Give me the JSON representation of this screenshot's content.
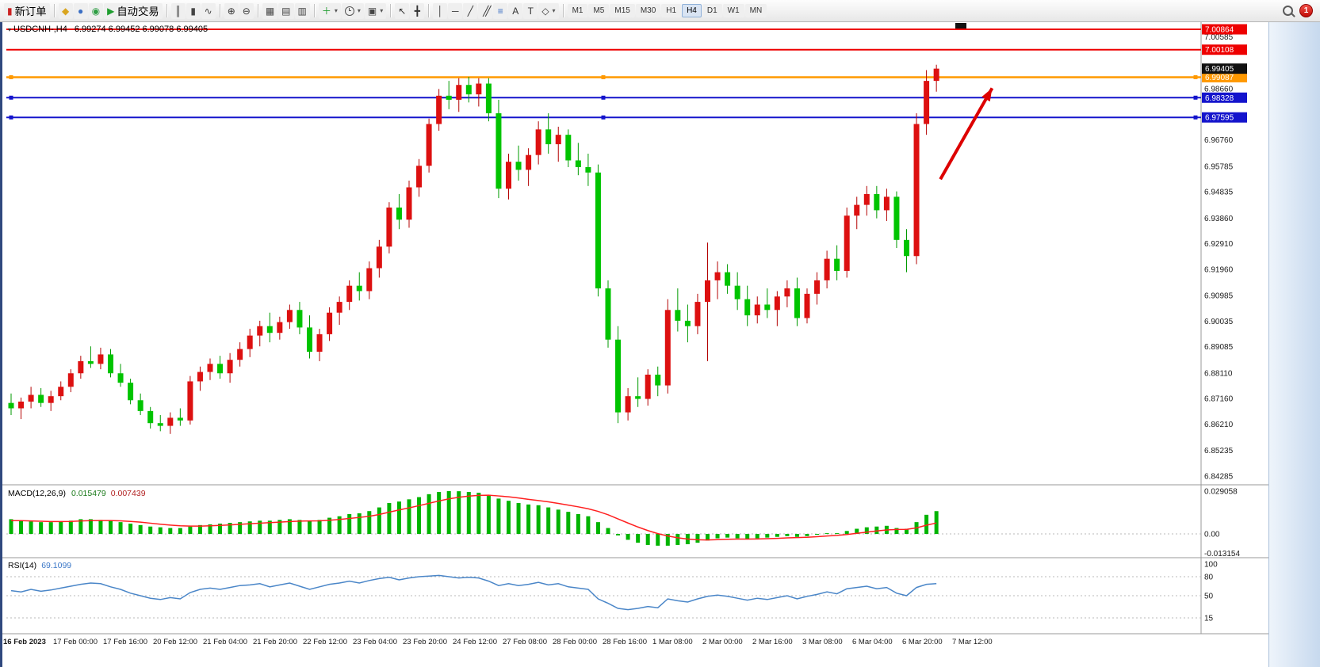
{
  "window": {
    "badge_count": "1"
  },
  "toolbar": {
    "groups": [
      {
        "items": [
          {
            "name": "new-order",
            "label": "新订单",
            "icon": "new-order-icon"
          }
        ]
      },
      {
        "items": [
          {
            "name": "metaeditor",
            "icon": "editor-icon"
          },
          {
            "name": "market-watch",
            "icon": "person-icon"
          },
          {
            "name": "sound-alerts",
            "icon": "sound-icon"
          },
          {
            "name": "autotrading",
            "label": "自动交易",
            "icon": "play-icon"
          }
        ]
      },
      {
        "items": [
          {
            "name": "bar-chart-mode",
            "icon": "bars-icon"
          },
          {
            "name": "candle-chart-mode",
            "icon": "candles-icon"
          },
          {
            "name": "line-chart-mode",
            "icon": "linechart-icon"
          }
        ]
      },
      {
        "items": [
          {
            "name": "zoom-in",
            "icon": "zoom-in-icon"
          },
          {
            "name": "zoom-out",
            "icon": "zoom-out-icon"
          }
        ]
      },
      {
        "items": [
          {
            "name": "tile-windows",
            "icon": "tile-icon"
          },
          {
            "name": "cascade-windows",
            "icon": "cascade-icon"
          },
          {
            "name": "arrange-windows",
            "icon": "arrange-icon"
          }
        ]
      },
      {
        "items": [
          {
            "name": "new-chart",
            "icon": "plus-chart-icon",
            "dropdown": true
          },
          {
            "name": "periods",
            "icon": "clock-icon",
            "dropdown": true
          },
          {
            "name": "templates",
            "icon": "template-icon",
            "dropdown": true
          }
        ]
      },
      {
        "items": [
          {
            "name": "cursor-tool",
            "icon": "cursor-icon"
          },
          {
            "name": "crosshair-tool",
            "icon": "crosshair-icon"
          }
        ]
      },
      {
        "items": [
          {
            "name": "vertical-line-tool",
            "icon": "vline-icon"
          },
          {
            "name": "horizontal-line-tool",
            "icon": "hline-icon"
          },
          {
            "name": "trendline-tool",
            "icon": "trendline-icon"
          },
          {
            "name": "channel-tool",
            "icon": "channel-icon"
          },
          {
            "name": "fibonacci-tool",
            "icon": "fibo-icon"
          },
          {
            "name": "text-tool",
            "icon": "text-icon"
          },
          {
            "name": "label-tool",
            "icon": "label-icon"
          },
          {
            "name": "shapes-tool",
            "icon": "shapes-icon",
            "dropdown": true
          }
        ]
      }
    ],
    "timeframes": [
      "M1",
      "M5",
      "M15",
      "M30",
      "H1",
      "H4",
      "D1",
      "W1",
      "MN"
    ],
    "active_timeframe": "H4"
  },
  "chart": {
    "title_symbol": "USDCNH-,H4",
    "title_ohlc": "6.99274 6.99452 6.99078 6.99405",
    "current_price": {
      "label": "6.99405",
      "price": 6.99405,
      "bg": "#111111"
    },
    "levels": [
      {
        "label": "7.00864",
        "price": 7.00864,
        "color": "#ee0000",
        "width": 2,
        "handles": false
      },
      {
        "label": "7.00108",
        "price": 7.00108,
        "color": "#ee0000",
        "width": 2,
        "handles": false
      },
      {
        "label": "6.99087",
        "price": 6.99087,
        "color": "#ff9900",
        "width": 2.5,
        "handles": true
      },
      {
        "label": "6.98328",
        "price": 6.98328,
        "color": "#1414cc",
        "width": 2,
        "handles": true
      },
      {
        "label": "6.97595",
        "price": 6.97595,
        "color": "#1414cc",
        "width": 2,
        "handles": true
      }
    ],
    "price_ticks": [
      "7.00585",
      "6.99435",
      "6.98660",
      "6.96760",
      "6.95785",
      "6.94835",
      "6.93860",
      "6.92910",
      "6.91960",
      "6.90985",
      "6.90035",
      "6.89085",
      "6.88110",
      "6.87160",
      "6.86210",
      "6.85235",
      "6.84285"
    ]
  },
  "chart_data": {
    "type": "candlestick",
    "symbol": "USDCNH-",
    "timeframe": "H4",
    "colors": {
      "up": "#dd1010",
      "up_wick": "#b40404",
      "down": "#00c400",
      "down_wick": "#009a00",
      "macd_bar": "#00b400",
      "macd_signal": "#ff2020",
      "rsi_line": "#4a86c8"
    },
    "candles": [
      [
        6.87,
        6.8735,
        6.8655,
        6.868
      ],
      [
        6.868,
        6.872,
        6.864,
        6.8705
      ],
      [
        6.8705,
        6.876,
        6.868,
        6.873
      ],
      [
        6.873,
        6.8755,
        6.8685,
        6.87
      ],
      [
        6.87,
        6.8745,
        6.867,
        6.8725
      ],
      [
        6.8725,
        6.878,
        6.871,
        6.876
      ],
      [
        6.876,
        6.8825,
        6.874,
        6.881
      ],
      [
        6.881,
        6.8875,
        6.879,
        6.8855
      ],
      [
        6.8855,
        6.891,
        6.883,
        6.8845
      ],
      [
        6.8845,
        6.8905,
        6.8825,
        6.888
      ],
      [
        6.888,
        6.89,
        6.8795,
        6.881
      ],
      [
        6.881,
        6.8845,
        6.876,
        6.8775
      ],
      [
        6.8775,
        6.879,
        6.8695,
        6.871
      ],
      [
        6.871,
        6.8735,
        6.8655,
        6.867
      ],
      [
        6.867,
        6.8685,
        6.8605,
        6.8625
      ],
      [
        6.8625,
        6.8655,
        6.8595,
        6.8615
      ],
      [
        6.8615,
        6.8665,
        6.8585,
        6.8645
      ],
      [
        6.8645,
        6.868,
        6.8615,
        6.8635
      ],
      [
        6.8635,
        6.88,
        6.862,
        6.878
      ],
      [
        6.878,
        6.8835,
        6.8745,
        6.8815
      ],
      [
        6.8815,
        6.8865,
        6.8785,
        6.8845
      ],
      [
        6.8845,
        6.8875,
        6.879,
        6.881
      ],
      [
        6.881,
        6.8885,
        6.8775,
        6.886
      ],
      [
        6.886,
        6.8925,
        6.8835,
        6.89
      ],
      [
        6.89,
        6.8975,
        6.887,
        6.895
      ],
      [
        6.895,
        6.9005,
        6.891,
        6.8985
      ],
      [
        6.8985,
        6.9035,
        6.8925,
        6.896
      ],
      [
        6.896,
        6.902,
        6.8935,
        6.9
      ],
      [
        6.9,
        6.9065,
        6.8975,
        6.9045
      ],
      [
        6.9045,
        6.9075,
        6.8955,
        6.898
      ],
      [
        6.898,
        6.9025,
        6.8865,
        6.889
      ],
      [
        6.889,
        6.8975,
        6.8855,
        6.8955
      ],
      [
        6.8955,
        6.9055,
        6.893,
        6.9035
      ],
      [
        6.9035,
        6.9095,
        6.899,
        6.9075
      ],
      [
        6.9075,
        6.9155,
        6.9045,
        6.9135
      ],
      [
        6.9135,
        6.9185,
        6.908,
        6.9115
      ],
      [
        6.9115,
        6.9225,
        6.9085,
        6.92
      ],
      [
        6.92,
        6.9305,
        6.9165,
        6.928
      ],
      [
        6.928,
        6.9445,
        6.9255,
        6.9425
      ],
      [
        6.9425,
        6.9475,
        6.9345,
        6.938
      ],
      [
        6.938,
        6.9525,
        6.935,
        6.95
      ],
      [
        6.95,
        6.9605,
        6.9465,
        6.958
      ],
      [
        6.958,
        6.9755,
        6.9555,
        6.9735
      ],
      [
        6.9735,
        6.9865,
        6.971,
        6.984
      ],
      [
        6.984,
        6.9895,
        6.979,
        6.9825
      ],
      [
        6.9825,
        6.9905,
        6.978,
        6.988
      ],
      [
        6.988,
        6.991,
        6.9815,
        6.9845
      ],
      [
        6.9845,
        6.9905,
        6.98,
        6.9885
      ],
      [
        6.9885,
        6.9905,
        6.9745,
        6.9775
      ],
      [
        6.9775,
        6.9825,
        6.946,
        6.9495
      ],
      [
        6.9495,
        6.9625,
        6.9455,
        6.9595
      ],
      [
        6.9595,
        6.9655,
        6.9525,
        6.9565
      ],
      [
        6.9565,
        6.9645,
        6.9505,
        6.962
      ],
      [
        6.962,
        6.9745,
        6.9585,
        6.9715
      ],
      [
        6.9715,
        6.9775,
        6.9625,
        6.966
      ],
      [
        6.966,
        6.9725,
        6.9595,
        6.9695
      ],
      [
        6.9695,
        6.9715,
        6.9575,
        6.96
      ],
      [
        6.96,
        6.9665,
        6.9545,
        6.9575
      ],
      [
        6.9575,
        6.9625,
        6.9505,
        6.9555
      ],
      [
        6.9555,
        6.9585,
        6.9095,
        6.9125
      ],
      [
        6.9125,
        6.9155,
        6.8905,
        6.8935
      ],
      [
        6.8935,
        6.8985,
        6.8625,
        6.8665
      ],
      [
        6.8665,
        6.8755,
        6.8635,
        6.8725
      ],
      [
        6.8725,
        6.8795,
        6.8685,
        6.8715
      ],
      [
        6.8715,
        6.8825,
        6.869,
        6.8805
      ],
      [
        6.8805,
        6.8835,
        6.8725,
        6.8765
      ],
      [
        6.8765,
        6.9085,
        6.8735,
        6.9045
      ],
      [
        6.9045,
        6.9125,
        6.8965,
        6.9005
      ],
      [
        6.9005,
        6.9065,
        6.8925,
        6.8985
      ],
      [
        6.8985,
        6.9105,
        6.8955,
        6.9075
      ],
      [
        6.9075,
        6.9295,
        6.8855,
        6.9155
      ],
      [
        6.9155,
        6.9225,
        6.9085,
        6.9185
      ],
      [
        6.9185,
        6.9215,
        6.9105,
        6.9135
      ],
      [
        6.9135,
        6.9185,
        6.9045,
        6.9085
      ],
      [
        6.9085,
        6.9135,
        6.8985,
        6.9025
      ],
      [
        6.9025,
        6.9095,
        6.8995,
        6.9065
      ],
      [
        6.9065,
        6.9125,
        6.9015,
        6.9045
      ],
      [
        6.9045,
        6.9115,
        6.8985,
        6.9095
      ],
      [
        6.9095,
        6.9155,
        6.9055,
        6.9125
      ],
      [
        6.9125,
        6.9165,
        6.8985,
        6.9015
      ],
      [
        6.9015,
        6.9125,
        6.8995,
        6.9105
      ],
      [
        6.9105,
        6.9185,
        6.9065,
        6.9155
      ],
      [
        6.9155,
        6.9265,
        6.9125,
        6.9235
      ],
      [
        6.9235,
        6.9285,
        6.9155,
        6.919
      ],
      [
        6.919,
        6.9425,
        6.9165,
        6.9395
      ],
      [
        6.9395,
        6.9465,
        6.9345,
        6.9435
      ],
      [
        6.9435,
        6.9505,
        6.9395,
        6.9475
      ],
      [
        6.9475,
        6.9505,
        6.9385,
        6.9415
      ],
      [
        6.9415,
        6.9495,
        6.9375,
        6.9465
      ],
      [
        6.9465,
        6.9485,
        6.9275,
        6.9305
      ],
      [
        6.9305,
        6.9345,
        6.9185,
        6.9245
      ],
      [
        6.9245,
        6.9775,
        6.9215,
        6.9735
      ],
      [
        6.9735,
        6.9935,
        6.9695,
        6.9895
      ],
      [
        6.9895,
        6.9955,
        6.9855,
        6.99405
      ]
    ],
    "macd": {
      "label": "MACD(12,26,9)",
      "value": "0.015479",
      "signal_value": "0.007439",
      "axis": {
        "top": "0.029058",
        "zero": "0.00",
        "bottom": "-0.013154"
      },
      "values": [
        0.01,
        0.009,
        0.0085,
        0.008,
        0.008,
        0.0085,
        0.009,
        0.01,
        0.01,
        0.0095,
        0.009,
        0.008,
        0.007,
        0.006,
        0.005,
        0.0045,
        0.004,
        0.004,
        0.005,
        0.006,
        0.0065,
        0.007,
        0.0075,
        0.008,
        0.0085,
        0.009,
        0.009,
        0.0095,
        0.01,
        0.0095,
        0.009,
        0.0095,
        0.011,
        0.012,
        0.0135,
        0.014,
        0.0155,
        0.018,
        0.021,
        0.022,
        0.0235,
        0.025,
        0.027,
        0.0285,
        0.029058,
        0.029,
        0.0285,
        0.028,
        0.0265,
        0.024,
        0.0225,
        0.021,
        0.02,
        0.0195,
        0.018,
        0.0165,
        0.015,
        0.0135,
        0.012,
        0.008,
        0.004,
        -0.001,
        -0.004,
        -0.006,
        -0.0075,
        -0.008,
        -0.008,
        -0.0075,
        -0.007,
        -0.006,
        -0.0045,
        -0.003,
        -0.0025,
        -0.003,
        -0.0035,
        -0.003,
        -0.0025,
        -0.002,
        -0.0015,
        -0.002,
        -0.0015,
        -0.0005,
        0.0005,
        0.0005,
        0.002,
        0.0035,
        0.0045,
        0.005,
        0.0055,
        0.004,
        0.0035,
        0.008,
        0.013,
        0.015479
      ],
      "signal": [
        0.009,
        0.009,
        0.0088,
        0.0086,
        0.0084,
        0.0084,
        0.0085,
        0.0088,
        0.009,
        0.0091,
        0.0091,
        0.0089,
        0.0085,
        0.008,
        0.0073,
        0.0066,
        0.006,
        0.0055,
        0.0053,
        0.0053,
        0.0055,
        0.0058,
        0.0061,
        0.0065,
        0.0069,
        0.0073,
        0.0077,
        0.008,
        0.0084,
        0.0087,
        0.0088,
        0.0089,
        0.0093,
        0.0098,
        0.0105,
        0.0112,
        0.012,
        0.0132,
        0.0148,
        0.0163,
        0.0177,
        0.0192,
        0.0208,
        0.0224,
        0.0238,
        0.0249,
        0.0257,
        0.0262,
        0.0263,
        0.0258,
        0.0252,
        0.0244,
        0.0235,
        0.0227,
        0.0218,
        0.0207,
        0.0196,
        0.0184,
        0.0171,
        0.0153,
        0.013,
        0.0102,
        0.0074,
        0.0047,
        0.0023,
        0.0002,
        -0.0014,
        -0.0026,
        -0.0035,
        -0.004,
        -0.0041,
        -0.0039,
        -0.0036,
        -0.0035,
        -0.0035,
        -0.0034,
        -0.0032,
        -0.003,
        -0.0027,
        -0.0025,
        -0.0023,
        -0.0019,
        -0.0014,
        -0.001,
        -0.0004,
        0.0004,
        0.0012,
        0.002,
        0.0027,
        0.003,
        0.0031,
        0.0041,
        0.0059,
        0.007439
      ]
    },
    "rsi": {
      "label": "RSI(14)",
      "value": "69.1099",
      "axis": [
        "100",
        "80",
        "50",
        "15"
      ],
      "levels": [
        80,
        50,
        15
      ],
      "values": [
        58,
        56,
        60,
        57,
        59,
        62,
        65,
        68,
        70,
        69,
        64,
        60,
        54,
        50,
        46,
        44,
        47,
        45,
        55,
        60,
        62,
        60,
        63,
        66,
        67,
        69,
        64,
        67,
        70,
        65,
        60,
        64,
        68,
        70,
        73,
        70,
        74,
        77,
        79,
        75,
        78,
        80,
        81,
        82,
        80,
        78,
        79,
        78,
        73,
        66,
        69,
        66,
        68,
        71,
        67,
        69,
        64,
        62,
        60,
        45,
        38,
        30,
        28,
        30,
        33,
        31,
        45,
        42,
        40,
        45,
        49,
        51,
        49,
        46,
        43,
        46,
        44,
        47,
        50,
        45,
        49,
        52,
        56,
        53,
        61,
        63,
        65,
        61,
        63,
        54,
        50,
        63,
        68,
        69.1099
      ]
    },
    "time_labels": [
      "16 Feb 2023",
      "17 Feb 00:00",
      "17 Feb 16:00",
      "20 Feb 12:00",
      "21 Feb 04:00",
      "21 Feb 20:00",
      "22 Feb 12:00",
      "23 Feb 04:00",
      "23 Feb 20:00",
      "24 Feb 12:00",
      "27 Feb 08:00",
      "28 Feb 00:00",
      "28 Feb 16:00",
      "1 Mar 08:00",
      "2 Mar 00:00",
      "2 Mar 16:00",
      "3 Mar 08:00",
      "6 Mar 04:00",
      "6 Mar 20:00",
      "7 Mar 12:00"
    ]
  },
  "annotation": {
    "arrow": {
      "color": "#dd0000",
      "from": {
        "index": 93.4,
        "price": 6.953
      },
      "to": {
        "index": 98.6,
        "price": 6.9868
      }
    }
  }
}
